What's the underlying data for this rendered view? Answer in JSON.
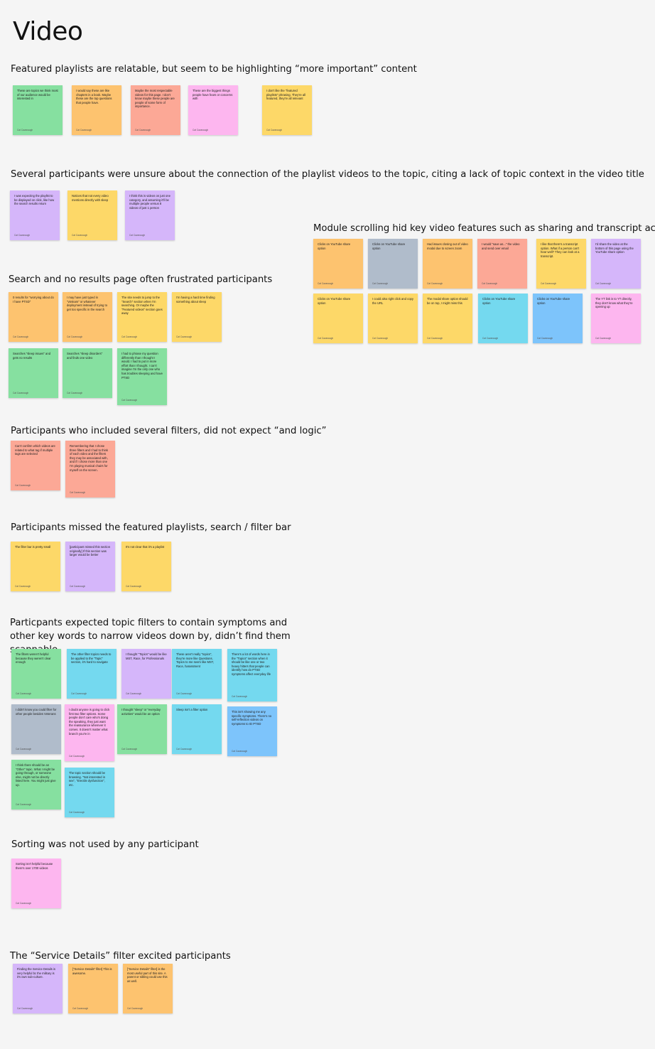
{
  "page": {
    "title": "Video"
  },
  "sections": [
    {
      "heading": "Featured playlists are relatable, but seem to be highlighting “more important” content",
      "notes": [
        {
          "text": "These are topics we think most of our audience would be interested in",
          "author": "Cat Cavanaugh",
          "color": "#86e0a0"
        },
        {
          "text": "I would say these are like chapters in a book. Maybe these are the top questions that people have.",
          "author": "Cat Cavanaugh",
          "color": "#fdc36f"
        },
        {
          "text": "Maybe the most respectable videos for this page. I don't know maybe these people are people of some form of importance.",
          "author": "Cat Cavanaugh",
          "color": "#fca896"
        },
        {
          "text": "These are the biggest things people have fears or concerns with",
          "author": "Cat Cavanaugh",
          "color": "#fdb6ef"
        },
        {
          "text": "I don't like the \"featured playlists\" phrasing. They're all featured, they're all relevant",
          "author": "Cat Cavanaugh",
          "color": "#fdd868"
        }
      ]
    },
    {
      "heading": "Several participants were unsure about the connection of the playlist videos to the topic, citing a lack of topic context in the video title",
      "notes": [
        {
          "text": "I was expecting the playlist to be displayed on click, like how the search results return",
          "author": "Cat Cavanaugh",
          "color": "#d5b6fa"
        },
        {
          "text": "Notices that not every video mentions directly with sleep",
          "author": "Cat Cavanaugh",
          "color": "#fdd868"
        },
        {
          "text": "I think this is videos on just one category, and assuming it'll be multiple people versus 8 videos of just 1 person",
          "author": "Cat Cavanaugh",
          "color": "#d5b6fa"
        }
      ]
    },
    {
      "heading": "Module scrolling hid key video features such as sharing and transcript access",
      "notes": [
        {
          "text": "Clicks on YouTube share option",
          "author": "Cat Cavanaugh",
          "color": "#fdc36f"
        },
        {
          "text": "Clicks on YouTube share option",
          "author": "Cat Cavanaugh",
          "color": "#b0bccb"
        },
        {
          "text": "Had issues closing out of video modal due to screen zoom",
          "author": "Cat Cavanaugh",
          "color": "#fdc36f"
        },
        {
          "text": "I would \"save as...\" the video and send over email",
          "author": "Cat Cavanaugh",
          "color": "#fca896"
        },
        {
          "text": "I like that there's a transcript option. What if a person can't hear well? They can look at a transcript.",
          "author": "Cat Cavanaugh",
          "color": "#fdd868"
        },
        {
          "text": "I'd share the video at the bottom of this page using the YouTube share option",
          "author": "Cat Cavanaugh",
          "color": "#d5b6fa"
        },
        {
          "text": "Clicks on YouTube share option",
          "author": "Cat Cavanaugh",
          "color": "#fdd868"
        },
        {
          "text": "I could also right click and copy the URL",
          "author": "Cat Cavanaugh",
          "color": "#fdd868"
        },
        {
          "text": "The modal share option should be on top, I might miss this",
          "author": "Cat Cavanaugh",
          "color": "#fdd868"
        },
        {
          "text": "Clicks on YouTube share option",
          "author": "Cat Cavanaugh",
          "color": "#74d9ef"
        },
        {
          "text": "Clicks on YouTube share option",
          "author": "Cat Cavanaugh",
          "color": "#7dc4fb"
        },
        {
          "text": "The YT link is to YT directly, they don't know what they're opening up",
          "author": "Cat Cavanaugh",
          "color": "#fdb6ef"
        }
      ]
    },
    {
      "heading": "Search and no results page often frustrated participants",
      "notes": [
        {
          "text": "0 results for \"worrying about do I have PTSD\"",
          "author": "Cat Cavanaugh",
          "color": "#fdc36f"
        },
        {
          "text": "I may have just typed in \"vietnam\" or whatever deployment instead of trying to get too specific in the search",
          "author": "Cat Cavanaugh",
          "color": "#fdc36f"
        },
        {
          "text": "The site needs to jump to the \"Search\" section when I'm searching. Or maybe the \"Featured videos\" section goes away",
          "author": "Cat Cavanaugh",
          "color": "#fdd868"
        },
        {
          "text": "I'm having a hard time finding something about sleep",
          "author": "Cat Cavanaugh",
          "color": "#fdd868"
        },
        {
          "text": "Searches \"sleep issues\" and gets no results",
          "author": "Cat Cavanaugh",
          "color": "#86e0a0"
        },
        {
          "text": "Searches \"sleep disorders\" and finds one video",
          "author": "Cat Cavanaugh",
          "color": "#86e0a0"
        },
        {
          "text": "I had to phrase my question differently than I thought I would. I had to put in more effort than I thought. I can't imagine I'm the only one who has troubles sleeping and have PTSD",
          "author": "Cat Cavanaugh",
          "color": "#86e0a0"
        }
      ]
    },
    {
      "heading": "Participants who included several filters, did not expect “and logic”",
      "notes": [
        {
          "text": "Can't confirm which videos are related to what tag if multiple tags are selected",
          "author": "Cat Cavanaugh",
          "color": "#fca896"
        },
        {
          "text": "Remembering that I chose three filters and I had to think of each video and the filters they may be associated with, and if I chose more than one I'm playing musical chairs for myself on the screen.",
          "author": "Cat Cavanaugh",
          "color": "#fca896"
        }
      ]
    },
    {
      "heading": "Participants missed the featured playlists, search / filter bar",
      "notes": [
        {
          "text": "The filter bar is pretty small",
          "author": "Cat Cavanaugh",
          "color": "#fdd868"
        },
        {
          "text": "[participant missed this section originally] If this section was larger would be better",
          "author": "Cat Cavanaugh",
          "color": "#d5b6fa"
        },
        {
          "text": "It's not clear that it's a playlist",
          "author": "Cat Cavanaugh",
          "color": "#fdd868"
        }
      ]
    },
    {
      "heading": "Particpants expected topic filters to contain symptoms and other key words to narrow videos down by, didn’t find them scannable",
      "notes": [
        {
          "text": "The filters weren't helpful because they weren't clear enough",
          "author": "Cat Cavanaugh",
          "color": "#86e0a0"
        },
        {
          "text": "The other filter topics needs to be applied to the \"Topic\" section, it's hard to navigate",
          "author": "Cat Cavanaugh",
          "color": "#74d9ef"
        },
        {
          "text": "I thought \"Topics\" would be like MST, Race, for Professionals",
          "author": "Cat Cavanaugh",
          "color": "#d5b6fa"
        },
        {
          "text": "These aren't really \"topics\", they're more like Questions. Topics to me seem like MST, Race, harassment",
          "author": "Cat Cavanaugh",
          "color": "#74d9ef"
        },
        {
          "text": "There's a lot of words here in the \"Topics\" section when it should be like one or two heavy hitters that people can identify how do PTSD symptoms affect everyday life",
          "author": "Cat Cavanaugh",
          "color": "#74d9ef"
        },
        {
          "text": "I didn't know you could filter for other people besides Veterans",
          "author": "Cat Cavanaugh",
          "color": "#b0bccb"
        },
        {
          "text": "I doubt anyone is going to click first two filter options. Some people don't care who's doing the speaking, they just want the reassurance wherever it comes. It doesn't matter what branch you're in",
          "author": "Cat Cavanaugh",
          "color": "#fdb6ef"
        },
        {
          "text": "I thought \"sleep\" or \"everyday activities\" would be an option",
          "author": "Cat Cavanaugh",
          "color": "#86e0a0"
        },
        {
          "text": "Sleep isn't a filter option",
          "author": "Cat Cavanaugh",
          "color": "#74d9ef"
        },
        {
          "text": "This isn't showing me any specific symptoms. There's no self-reflection videos on symptoms to ID PTSD",
          "author": "Cat Cavanaugh",
          "color": "#7dc4fb"
        },
        {
          "text": "I think there should be an \"Other\" topic. What I might be going through, or someone else, might not be directly listed here. You might just give up.",
          "author": "Cat Cavanaugh",
          "color": "#86e0a0"
        },
        {
          "text": "The topic section should be browsing. \"Not interested in sex\", \"Erectile dysfunction\", etc.",
          "author": "Cat Cavanaugh",
          "color": "#74d9ef"
        }
      ]
    },
    {
      "heading": "Sorting was not used by any participant",
      "notes": [
        {
          "text": "Sorting isn't helpful because there's over 1700 videos",
          "author": "Cat Cavanaugh",
          "color": "#fdb6ef"
        }
      ]
    },
    {
      "heading": "The “Service Details” filter excited participants",
      "notes": [
        {
          "text": "Finding the Service Details is very helpful bc the military is it's own sub-culture.",
          "author": "Cat Cavanaugh",
          "color": "#d5b6fa"
        },
        {
          "text": "[\"Service Details\" filter] This is awesome.",
          "author": "Cat Cavanaugh",
          "color": "#fdc36f"
        },
        {
          "text": "[\"Service Details\" filter] is the most useful part of this site. A parent or sibling could use this as well.",
          "author": "Cat Cavanaugh",
          "color": "#fdc36f"
        }
      ]
    }
  ]
}
